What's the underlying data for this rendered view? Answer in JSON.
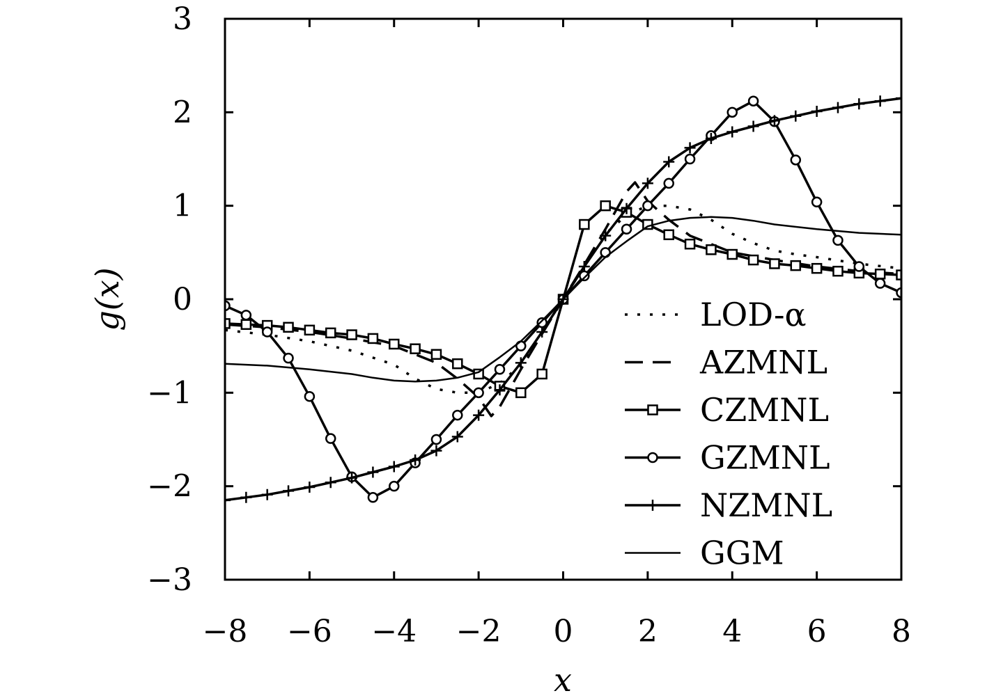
{
  "chart_data": {
    "type": "line",
    "title": "",
    "xlabel": "x",
    "ylabel": "g(x)",
    "xlim": [
      -8,
      8
    ],
    "ylim": [
      -3,
      3
    ],
    "xticks": [
      -8,
      -6,
      -4,
      -2,
      0,
      2,
      4,
      6,
      8
    ],
    "yticks": [
      -3,
      -2,
      -1,
      0,
      1,
      2,
      3
    ],
    "xtick_labels": [
      "−8",
      "−6",
      "−4",
      "−2",
      "0",
      "2",
      "4",
      "6",
      "8"
    ],
    "ytick_labels": [
      "−3",
      "−2",
      "−1",
      "0",
      "1",
      "2",
      "3"
    ],
    "grid": false,
    "legend_position": "bottom-right",
    "series": [
      {
        "name": "LOD-α",
        "style": "dotted",
        "marker": "none",
        "x": [
          -8,
          -7,
          -6,
          -5,
          -4,
          -3.5,
          -3,
          -2.5,
          -2,
          -1.5,
          -1,
          -0.5,
          0,
          0.5,
          1,
          1.5,
          2,
          2.5,
          3,
          3.5,
          4,
          4.5,
          5,
          5.5,
          6,
          7,
          8
        ],
        "y": [
          -0.33,
          -0.38,
          -0.45,
          -0.55,
          -0.7,
          -0.85,
          -0.96,
          -1.0,
          -1.0,
          -0.9,
          -0.7,
          -0.35,
          0,
          0.35,
          0.7,
          0.9,
          1.0,
          1.0,
          0.96,
          0.85,
          0.7,
          0.6,
          0.52,
          0.48,
          0.45,
          0.38,
          0.33
        ]
      },
      {
        "name": "AZMNL",
        "style": "dashed",
        "marker": "none",
        "x": [
          -8,
          -7,
          -6,
          -5,
          -4,
          -3,
          -2.5,
          -2,
          -1.7,
          -1.5,
          -1,
          -0.5,
          0,
          0.5,
          1,
          1.5,
          1.7,
          2,
          2.5,
          3,
          4,
          5,
          6,
          7,
          8
        ],
        "y": [
          -0.27,
          -0.3,
          -0.35,
          -0.42,
          -0.5,
          -0.68,
          -0.85,
          -1.05,
          -1.25,
          -1.15,
          -0.75,
          -0.37,
          0,
          0.37,
          0.75,
          1.15,
          1.25,
          1.05,
          0.85,
          0.68,
          0.5,
          0.42,
          0.35,
          0.3,
          0.27
        ]
      },
      {
        "name": "CZMNL",
        "style": "solid",
        "marker": "square",
        "x": [
          -8,
          -7.5,
          -7,
          -6.5,
          -6,
          -5.5,
          -5,
          -4.5,
          -4,
          -3.5,
          -3,
          -2.5,
          -2,
          -1.5,
          -1,
          -0.5,
          0,
          0.5,
          1,
          1.5,
          2,
          2.5,
          3,
          3.5,
          4,
          4.5,
          5,
          5.5,
          6,
          6.5,
          7,
          7.5,
          8
        ],
        "y": [
          -0.26,
          -0.27,
          -0.28,
          -0.3,
          -0.33,
          -0.36,
          -0.38,
          -0.42,
          -0.48,
          -0.53,
          -0.59,
          -0.69,
          -0.8,
          -0.93,
          -1.0,
          -0.8,
          0,
          0.8,
          1.0,
          0.93,
          0.8,
          0.69,
          0.59,
          0.53,
          0.48,
          0.42,
          0.38,
          0.36,
          0.33,
          0.3,
          0.28,
          0.27,
          0.26
        ]
      },
      {
        "name": "GZMNL",
        "style": "solid",
        "marker": "circle",
        "x": [
          -8,
          -7.5,
          -7,
          -6.5,
          -6,
          -5.5,
          -5,
          -4.5,
          -4,
          -3.5,
          -3,
          -2.5,
          -2,
          -1.5,
          -1,
          -0.5,
          0,
          0.5,
          1,
          1.5,
          2,
          2.5,
          3,
          3.5,
          4,
          4.5,
          5,
          5.5,
          6,
          6.5,
          7,
          7.5,
          8
        ],
        "y": [
          -0.07,
          -0.17,
          -0.35,
          -0.63,
          -1.04,
          -1.49,
          -1.9,
          -2.12,
          -2.0,
          -1.75,
          -1.5,
          -1.24,
          -1.0,
          -0.75,
          -0.5,
          -0.25,
          0,
          0.25,
          0.5,
          0.75,
          1.0,
          1.24,
          1.5,
          1.75,
          2.0,
          2.12,
          1.9,
          1.49,
          1.04,
          0.63,
          0.35,
          0.17,
          0.07
        ]
      },
      {
        "name": "NZMNL",
        "style": "solid",
        "marker": "plus",
        "x": [
          -8,
          -7.5,
          -7,
          -6.5,
          -6,
          -5.5,
          -5,
          -4.5,
          -4,
          -3.5,
          -3,
          -2.5,
          -2,
          -1.5,
          -1,
          -0.5,
          0,
          0.5,
          1,
          1.5,
          2,
          2.5,
          3,
          3.5,
          4,
          4.5,
          5,
          5.5,
          6,
          6.5,
          7,
          7.5,
          8
        ],
        "y": [
          -2.15,
          -2.12,
          -2.09,
          -2.05,
          -2.01,
          -1.96,
          -1.91,
          -1.85,
          -1.79,
          -1.72,
          -1.62,
          -1.47,
          -1.24,
          -0.97,
          -0.68,
          -0.35,
          0,
          0.35,
          0.68,
          0.97,
          1.24,
          1.47,
          1.62,
          1.72,
          1.79,
          1.85,
          1.91,
          1.96,
          2.01,
          2.05,
          2.09,
          2.12,
          2.15
        ]
      },
      {
        "name": "GGM",
        "style": "solid-thin",
        "marker": "none",
        "x": [
          -8,
          -7,
          -6,
          -5,
          -4.5,
          -4,
          -3.5,
          -3,
          -2.5,
          -2,
          -1.5,
          -1,
          -0.5,
          0,
          0.5,
          1,
          1.5,
          2,
          2.5,
          3,
          3.5,
          4,
          4.5,
          5,
          6,
          7,
          8
        ],
        "y": [
          -0.69,
          -0.71,
          -0.75,
          -0.8,
          -0.84,
          -0.87,
          -0.88,
          -0.87,
          -0.84,
          -0.78,
          -0.62,
          -0.45,
          -0.23,
          0,
          0.23,
          0.45,
          0.62,
          0.78,
          0.84,
          0.87,
          0.88,
          0.87,
          0.84,
          0.8,
          0.75,
          0.71,
          0.69
        ]
      }
    ]
  }
}
